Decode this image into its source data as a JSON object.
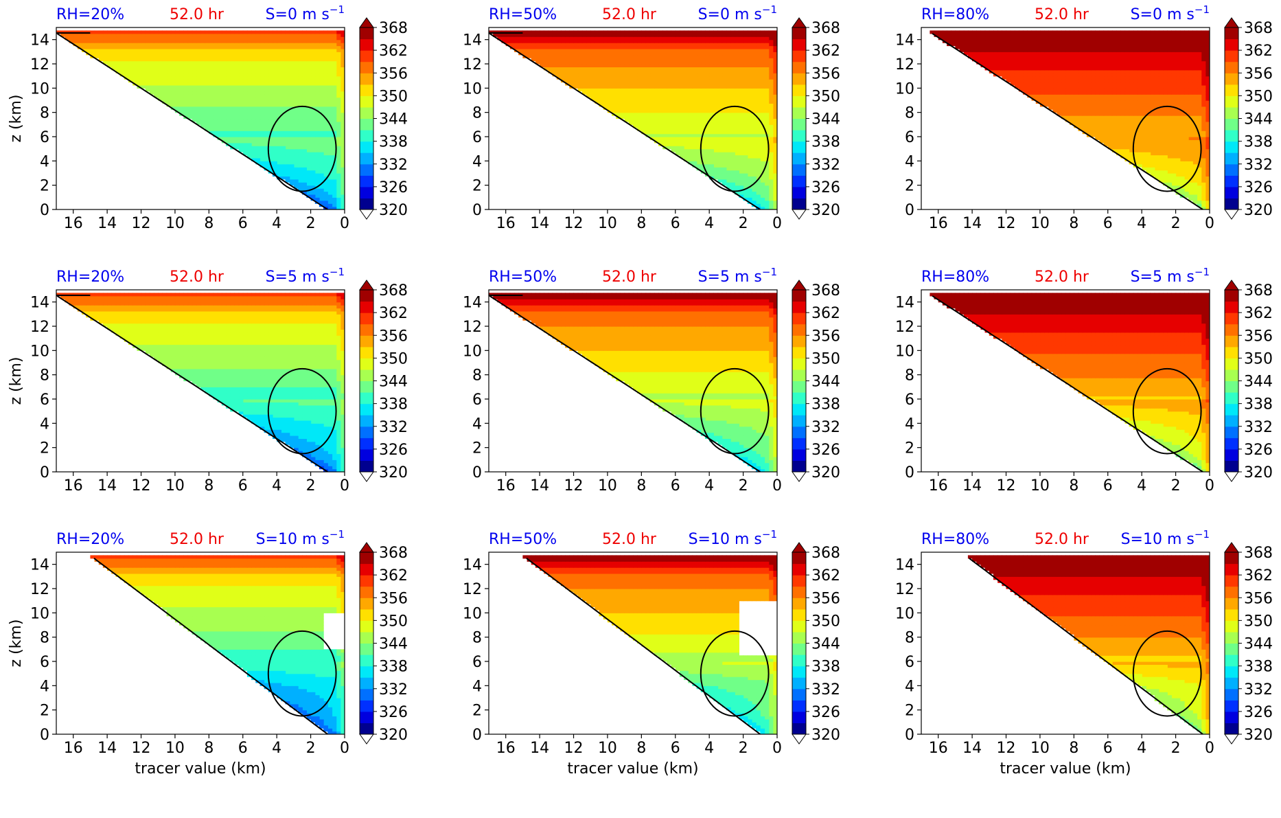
{
  "colors": {
    "rh_label": "#0000ee",
    "time_label": "#ee0000",
    "shear_label": "#0000ee",
    "contour": "#000000",
    "colormap": [
      "#00008f",
      "#0000df",
      "#0030ff",
      "#0070ff",
      "#00b0ff",
      "#00e8f8",
      "#30ffc8",
      "#70ff88",
      "#a8ff50",
      "#e0ff18",
      "#ffe000",
      "#ffa800",
      "#ff7000",
      "#ff3800",
      "#e60000",
      "#a00000"
    ]
  },
  "chart_data": [
    {
      "type": "contour",
      "rh_label": "RH=20%",
      "time_label": "52.0 hr",
      "shear_label": "S=0 m s",
      "shear_exp": "−1",
      "ylabel": "z (km)",
      "xlabel": "",
      "xlim": [
        17,
        0
      ],
      "ylim": [
        0,
        15
      ],
      "x_ticks": [
        "16",
        "14",
        "12",
        "10",
        "8",
        "6",
        "4",
        "2",
        "0"
      ],
      "y_ticks": [
        "0",
        "2",
        "4",
        "6",
        "8",
        "10",
        "12",
        "14"
      ],
      "colorbar_ticks": [
        "368",
        "362",
        "356",
        "350",
        "344",
        "338",
        "332",
        "326",
        "320"
      ],
      "colorbar_range": [
        320,
        368
      ],
      "params": {
        "rh": 20,
        "shear": 0
      }
    },
    {
      "type": "contour",
      "rh_label": "RH=50%",
      "time_label": "52.0 hr",
      "shear_label": "S=0 m s",
      "shear_exp": "−1",
      "ylabel": "",
      "xlabel": "",
      "xlim": [
        17,
        0
      ],
      "ylim": [
        0,
        15
      ],
      "x_ticks": [
        "16",
        "14",
        "12",
        "10",
        "8",
        "6",
        "4",
        "2",
        "0"
      ],
      "y_ticks": [
        "0",
        "2",
        "4",
        "6",
        "8",
        "10",
        "12",
        "14"
      ],
      "colorbar_ticks": [
        "368",
        "362",
        "356",
        "350",
        "344",
        "338",
        "332",
        "326",
        "320"
      ],
      "colorbar_range": [
        320,
        368
      ],
      "params": {
        "rh": 50,
        "shear": 0
      }
    },
    {
      "type": "contour",
      "rh_label": "RH=80%",
      "time_label": "52.0 hr",
      "shear_label": "S=0 m s",
      "shear_exp": "−1",
      "ylabel": "",
      "xlabel": "",
      "xlim": [
        17,
        0
      ],
      "ylim": [
        0,
        15
      ],
      "x_ticks": [
        "16",
        "14",
        "12",
        "10",
        "8",
        "6",
        "4",
        "2",
        "0"
      ],
      "y_ticks": [
        "0",
        "2",
        "4",
        "6",
        "8",
        "10",
        "12",
        "14"
      ],
      "colorbar_ticks": [
        "368",
        "362",
        "356",
        "350",
        "344",
        "338",
        "332",
        "326",
        "320"
      ],
      "colorbar_range": [
        320,
        368
      ],
      "params": {
        "rh": 80,
        "shear": 0
      }
    },
    {
      "type": "contour",
      "rh_label": "RH=20%",
      "time_label": "52.0 hr",
      "shear_label": "S=5 m s",
      "shear_exp": "−1",
      "ylabel": "z (km)",
      "xlabel": "",
      "xlim": [
        17,
        0
      ],
      "ylim": [
        0,
        15
      ],
      "x_ticks": [
        "16",
        "14",
        "12",
        "10",
        "8",
        "6",
        "4",
        "2",
        "0"
      ],
      "y_ticks": [
        "0",
        "2",
        "4",
        "6",
        "8",
        "10",
        "12",
        "14"
      ],
      "colorbar_ticks": [
        "368",
        "362",
        "356",
        "350",
        "344",
        "338",
        "332",
        "326",
        "320"
      ],
      "colorbar_range": [
        320,
        368
      ],
      "params": {
        "rh": 20,
        "shear": 5
      }
    },
    {
      "type": "contour",
      "rh_label": "RH=50%",
      "time_label": "52.0 hr",
      "shear_label": "S=5 m s",
      "shear_exp": "−1",
      "ylabel": "",
      "xlabel": "",
      "xlim": [
        17,
        0
      ],
      "ylim": [
        0,
        15
      ],
      "x_ticks": [
        "16",
        "14",
        "12",
        "10",
        "8",
        "6",
        "4",
        "2",
        "0"
      ],
      "y_ticks": [
        "0",
        "2",
        "4",
        "6",
        "8",
        "10",
        "12",
        "14"
      ],
      "colorbar_ticks": [
        "368",
        "362",
        "356",
        "350",
        "344",
        "338",
        "332",
        "326",
        "320"
      ],
      "colorbar_range": [
        320,
        368
      ],
      "params": {
        "rh": 50,
        "shear": 5
      }
    },
    {
      "type": "contour",
      "rh_label": "RH=80%",
      "time_label": "52.0 hr",
      "shear_label": "S=5 m s",
      "shear_exp": "−1",
      "ylabel": "",
      "xlabel": "",
      "xlim": [
        17,
        0
      ],
      "ylim": [
        0,
        15
      ],
      "x_ticks": [
        "16",
        "14",
        "12",
        "10",
        "8",
        "6",
        "4",
        "2",
        "0"
      ],
      "y_ticks": [
        "0",
        "2",
        "4",
        "6",
        "8",
        "10",
        "12",
        "14"
      ],
      "colorbar_ticks": [
        "368",
        "362",
        "356",
        "350",
        "344",
        "338",
        "332",
        "326",
        "320"
      ],
      "colorbar_range": [
        320,
        368
      ],
      "params": {
        "rh": 80,
        "shear": 5
      }
    },
    {
      "type": "contour",
      "rh_label": "RH=20%",
      "time_label": "52.0 hr",
      "shear_label": "S=10 m s",
      "shear_exp": "−1",
      "ylabel": "z (km)",
      "xlabel": "tracer value (km)",
      "xlim": [
        17,
        0
      ],
      "ylim": [
        0,
        15
      ],
      "x_ticks": [
        "16",
        "14",
        "12",
        "10",
        "8",
        "6",
        "4",
        "2",
        "0"
      ],
      "y_ticks": [
        "0",
        "2",
        "4",
        "6",
        "8",
        "10",
        "12",
        "14"
      ],
      "colorbar_ticks": [
        "368",
        "362",
        "356",
        "350",
        "344",
        "338",
        "332",
        "326",
        "320"
      ],
      "colorbar_range": [
        320,
        368
      ],
      "params": {
        "rh": 20,
        "shear": 10
      }
    },
    {
      "type": "contour",
      "rh_label": "RH=50%",
      "time_label": "52.0 hr",
      "shear_label": "S=10 m s",
      "shear_exp": "−1",
      "ylabel": "",
      "xlabel": "tracer value (km)",
      "xlim": [
        17,
        0
      ],
      "ylim": [
        0,
        15
      ],
      "x_ticks": [
        "16",
        "14",
        "12",
        "10",
        "8",
        "6",
        "4",
        "2",
        "0"
      ],
      "y_ticks": [
        "0",
        "2",
        "4",
        "6",
        "8",
        "10",
        "12",
        "14"
      ],
      "colorbar_ticks": [
        "368",
        "362",
        "356",
        "350",
        "344",
        "338",
        "332",
        "326",
        "320"
      ],
      "colorbar_range": [
        320,
        368
      ],
      "params": {
        "rh": 50,
        "shear": 10
      }
    },
    {
      "type": "contour",
      "rh_label": "RH=80%",
      "time_label": "52.0 hr",
      "shear_label": "S=10 m s",
      "shear_exp": "−1",
      "ylabel": "",
      "xlabel": "tracer value (km)",
      "xlim": [
        17,
        0
      ],
      "ylim": [
        0,
        15
      ],
      "x_ticks": [
        "16",
        "14",
        "12",
        "10",
        "8",
        "6",
        "4",
        "2",
        "0"
      ],
      "y_ticks": [
        "0",
        "2",
        "4",
        "6",
        "8",
        "10",
        "12",
        "14"
      ],
      "colorbar_ticks": [
        "368",
        "362",
        "356",
        "350",
        "344",
        "338",
        "332",
        "326",
        "320"
      ],
      "colorbar_range": [
        320,
        368
      ],
      "params": {
        "rh": 80,
        "shear": 10
      }
    }
  ]
}
